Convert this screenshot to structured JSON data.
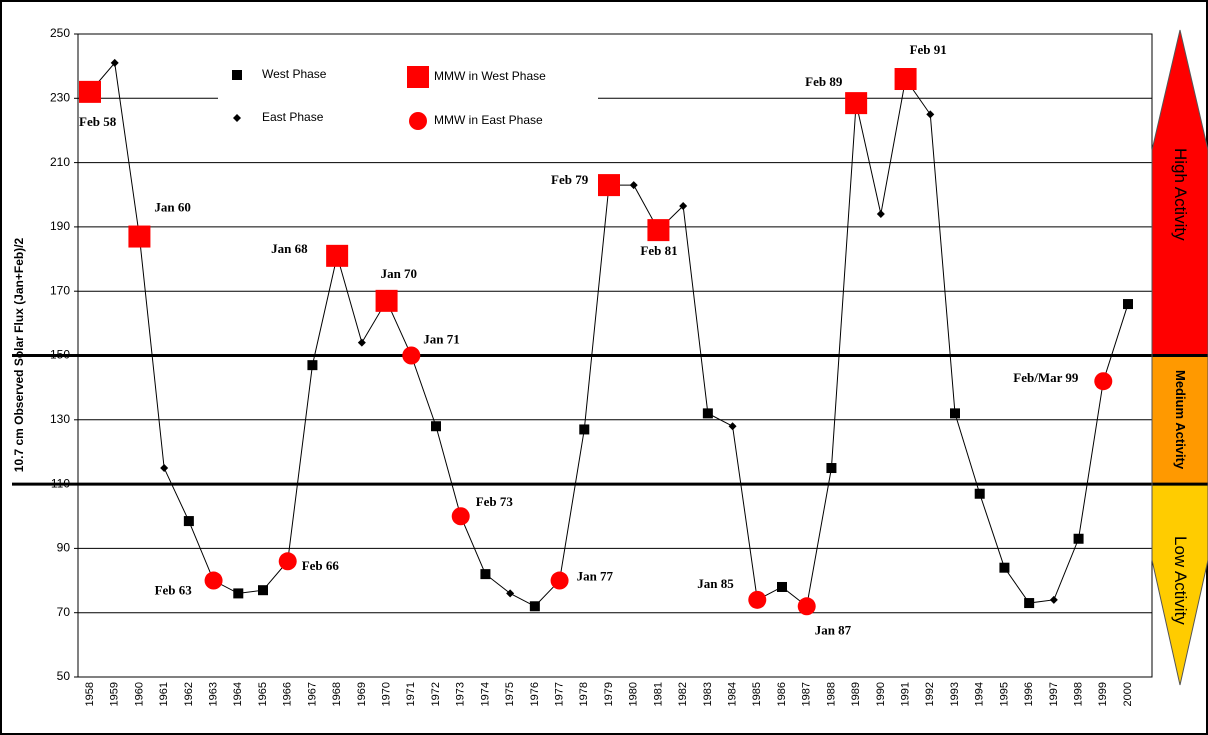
{
  "chart_data": {
    "type": "line",
    "y_label": "10.7 cm Observed Solar Flux (Jan+Feb)/2",
    "categories": [
      "1958",
      "1959",
      "1960",
      "1961",
      "1962",
      "1963",
      "1964",
      "1965",
      "1966",
      "1967",
      "1968",
      "1969",
      "1970",
      "1971",
      "1972",
      "1973",
      "1974",
      "1975",
      "1976",
      "1977",
      "1978",
      "1979",
      "1980",
      "1981",
      "1982",
      "1983",
      "1984",
      "1985",
      "1986",
      "1987",
      "1988",
      "1989",
      "1990",
      "1991",
      "1992",
      "1993",
      "1994",
      "1995",
      "1996",
      "1997",
      "1998",
      "1999",
      "2000"
    ],
    "series": [
      {
        "name": "West Phase",
        "color": "#000000",
        "marker": "square",
        "values": [
          null,
          null,
          null,
          null,
          98.5,
          null,
          76,
          77,
          null,
          147,
          null,
          null,
          null,
          null,
          128,
          null,
          82,
          null,
          72,
          null,
          127,
          null,
          null,
          null,
          null,
          132,
          null,
          null,
          78,
          null,
          115,
          null,
          null,
          null,
          null,
          132,
          107,
          84,
          73,
          null,
          93,
          null,
          166
        ]
      },
      {
        "name": "East Phase",
        "color": "#000000",
        "marker": "diamond",
        "values": [
          null,
          241,
          null,
          115,
          null,
          null,
          null,
          null,
          null,
          null,
          null,
          154,
          null,
          null,
          null,
          null,
          null,
          76,
          null,
          null,
          null,
          null,
          203,
          null,
          196.5,
          null,
          128,
          null,
          null,
          null,
          null,
          null,
          194,
          null,
          225,
          null,
          null,
          null,
          null,
          74,
          null,
          null,
          null
        ]
      },
      {
        "name": "MMW in West Phase",
        "color": "#ff0000",
        "marker": "big-square",
        "values": [
          232,
          null,
          187,
          null,
          null,
          null,
          null,
          null,
          null,
          null,
          181,
          null,
          167,
          null,
          null,
          null,
          null,
          null,
          null,
          null,
          null,
          203,
          null,
          189,
          null,
          null,
          null,
          null,
          null,
          null,
          null,
          228.5,
          null,
          236,
          null,
          null,
          null,
          null,
          null,
          null,
          null,
          null,
          null
        ]
      },
      {
        "name": "MMW in East Phase",
        "color": "#ff0000",
        "marker": "circle",
        "values": [
          null,
          null,
          null,
          null,
          null,
          80,
          null,
          null,
          86,
          null,
          null,
          null,
          null,
          150,
          null,
          100,
          null,
          null,
          null,
          80,
          null,
          null,
          null,
          null,
          null,
          null,
          null,
          74,
          null,
          72,
          null,
          null,
          null,
          null,
          null,
          null,
          null,
          null,
          null,
          null,
          null,
          142,
          null
        ]
      }
    ],
    "line_color": "#000000",
    "annotations": [
      {
        "text": "Feb 58",
        "x": "1958"
      },
      {
        "text": "Jan 60",
        "x": "1960"
      },
      {
        "text": "Feb 63",
        "x": "1963"
      },
      {
        "text": "Feb 66",
        "x": "1966"
      },
      {
        "text": "Jan 68",
        "x": "1968"
      },
      {
        "text": "Jan 70",
        "x": "1970"
      },
      {
        "text": "Jan 71",
        "x": "1971"
      },
      {
        "text": "Feb 73",
        "x": "1973"
      },
      {
        "text": "Jan 77",
        "x": "1977"
      },
      {
        "text": "Feb 79",
        "x": "1979"
      },
      {
        "text": "Feb 81",
        "x": "1981"
      },
      {
        "text": "Jan 85",
        "x": "1985"
      },
      {
        "text": "Jan 87",
        "x": "1987"
      },
      {
        "text": "Feb 89",
        "x": "1989"
      },
      {
        "text": "Feb 91",
        "x": "1991"
      },
      {
        "text": "Feb/Mar 99",
        "x": "1999"
      }
    ],
    "bands": [
      {
        "label": "High Activity",
        "range": [
          150,
          250
        ],
        "color": "#ff0000"
      },
      {
        "label": "Medium Activity",
        "range": [
          110,
          150
        ],
        "color": "#ff9900"
      },
      {
        "label": "Low Activity",
        "range": [
          50,
          110
        ],
        "color": "#ffcc00"
      }
    ],
    "ylim": [
      50,
      250
    ],
    "yticks": [
      50,
      70,
      90,
      110,
      130,
      150,
      170,
      190,
      210,
      230,
      250
    ],
    "grid": true
  }
}
